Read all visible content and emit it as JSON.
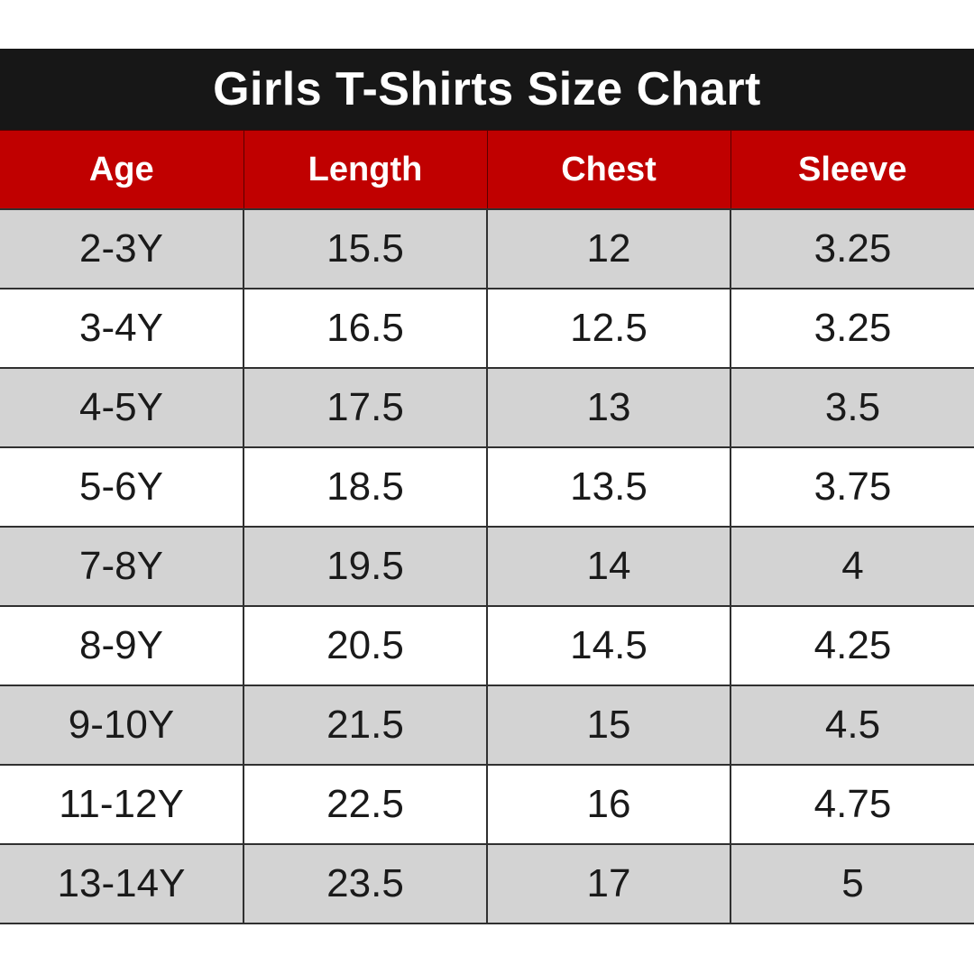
{
  "title": "Girls T-Shirts Size Chart",
  "colors": {
    "title_bg": "#171717",
    "header_bg": "#c00000",
    "row_shade": "#d3d3d3",
    "row_plain": "#ffffff"
  },
  "columns": [
    "Age",
    "Length",
    "Chest",
    "Sleeve"
  ],
  "rows": [
    [
      "2-3Y",
      "15.5",
      "12",
      "3.25"
    ],
    [
      "3-4Y",
      "16.5",
      "12.5",
      "3.25"
    ],
    [
      "4-5Y",
      "17.5",
      "13",
      "3.5"
    ],
    [
      "5-6Y",
      "18.5",
      "13.5",
      "3.75"
    ],
    [
      "7-8Y",
      "19.5",
      "14",
      "4"
    ],
    [
      "8-9Y",
      "20.5",
      "14.5",
      "4.25"
    ],
    [
      "9-10Y",
      "21.5",
      "15",
      "4.5"
    ],
    [
      "11-12Y",
      "22.5",
      "16",
      "4.75"
    ],
    [
      "13-14Y",
      "23.5",
      "17",
      "5"
    ]
  ]
}
